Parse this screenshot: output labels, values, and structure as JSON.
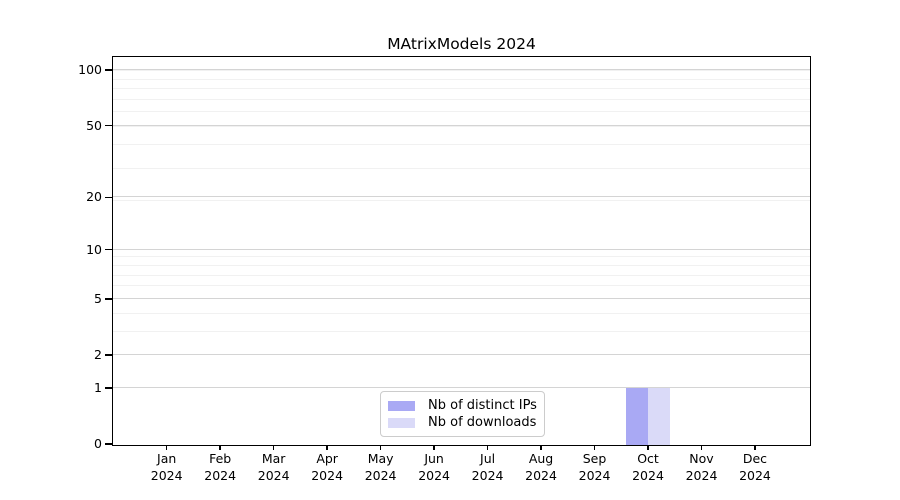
{
  "title": "MAtrixModels 2024",
  "legend": {
    "items": [
      {
        "label": "Nb of distinct IPs",
        "color": "#a9a9f4"
      },
      {
        "label": "Nb of downloads",
        "color": "#dadaf8"
      }
    ]
  },
  "chart_data": {
    "type": "bar",
    "title": "MAtrixModels 2024",
    "xlabel": "",
    "ylabel": "",
    "yscale": "log1p",
    "ylim": [
      0,
      118
    ],
    "grid": "horizontal-only",
    "legend_position": "inside-bottom-center",
    "y_major_ticks": [
      0,
      1,
      2,
      5,
      10,
      20,
      50,
      100
    ],
    "y_minor_ticks": [
      3,
      4,
      6,
      7,
      8,
      9,
      19,
      29,
      39,
      49,
      59,
      69,
      79,
      89,
      99
    ],
    "categories": [
      {
        "month": "Jan",
        "year": "2024"
      },
      {
        "month": "Feb",
        "year": "2024"
      },
      {
        "month": "Mar",
        "year": "2024"
      },
      {
        "month": "Apr",
        "year": "2024"
      },
      {
        "month": "May",
        "year": "2024"
      },
      {
        "month": "Jun",
        "year": "2024"
      },
      {
        "month": "Jul",
        "year": "2024"
      },
      {
        "month": "Aug",
        "year": "2024"
      },
      {
        "month": "Sep",
        "year": "2024"
      },
      {
        "month": "Oct",
        "year": "2024"
      },
      {
        "month": "Nov",
        "year": "2024"
      },
      {
        "month": "Dec",
        "year": "2024"
      }
    ],
    "series": [
      {
        "name": "Nb of distinct IPs",
        "color": "#a9a9f4",
        "values": [
          0,
          0,
          0,
          0,
          0,
          0,
          0,
          0,
          0,
          1,
          0,
          0
        ]
      },
      {
        "name": "Nb of downloads",
        "color": "#dadaf8",
        "values": [
          0,
          0,
          0,
          0,
          0,
          0,
          0,
          0,
          0,
          1,
          0,
          0
        ]
      }
    ],
    "colors": {
      "grid_major": "#d4d4d4",
      "grid_minor": "#f1f1f1",
      "axis": "#000000"
    }
  }
}
